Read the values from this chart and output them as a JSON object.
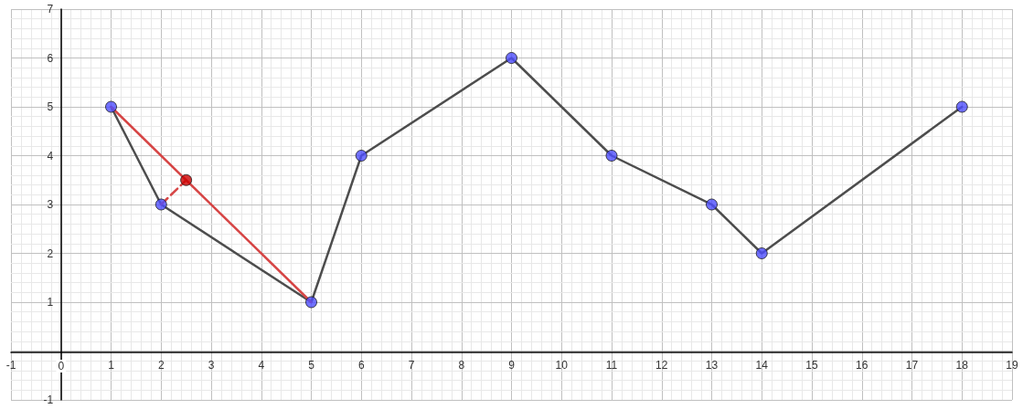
{
  "chart_data": {
    "type": "line",
    "xlim": [
      -1,
      19
    ],
    "ylim": [
      -1,
      7
    ],
    "xticks": [
      -1,
      0,
      1,
      2,
      3,
      4,
      5,
      6,
      7,
      8,
      9,
      10,
      11,
      12,
      13,
      14,
      15,
      16,
      17,
      18,
      19
    ],
    "yticks": [
      -1,
      {
        "value": 0,
        "label": null
      },
      1,
      2,
      3,
      4,
      5,
      6,
      7
    ],
    "grid": true,
    "series": [
      {
        "color": "#4d4d4d",
        "x": [
          1,
          2,
          5,
          6,
          9,
          11,
          13,
          14,
          18
        ],
        "values": [
          5,
          3,
          1,
          4,
          6,
          4,
          3,
          2,
          5
        ],
        "marker": "none"
      },
      {
        "color": "#d64545",
        "x": [
          1,
          5
        ],
        "values": [
          5,
          1
        ],
        "marker": "none"
      },
      {
        "color": "#d64545",
        "x": [
          2,
          2.5
        ],
        "values": [
          3,
          3.5
        ],
        "marker": "none",
        "line_style": "dashed"
      },
      {
        "type": "scatter",
        "color": "#4d4dff",
        "x": [
          1,
          2,
          5,
          6,
          9,
          11,
          13,
          14,
          18
        ],
        "values": [
          5,
          3,
          1,
          4,
          6,
          4,
          3,
          2,
          5
        ],
        "marker": "circle"
      },
      {
        "type": "scatter",
        "color": "#cc0000",
        "x": [
          2.5
        ],
        "values": [
          3.5
        ],
        "marker": "circle"
      }
    ]
  }
}
